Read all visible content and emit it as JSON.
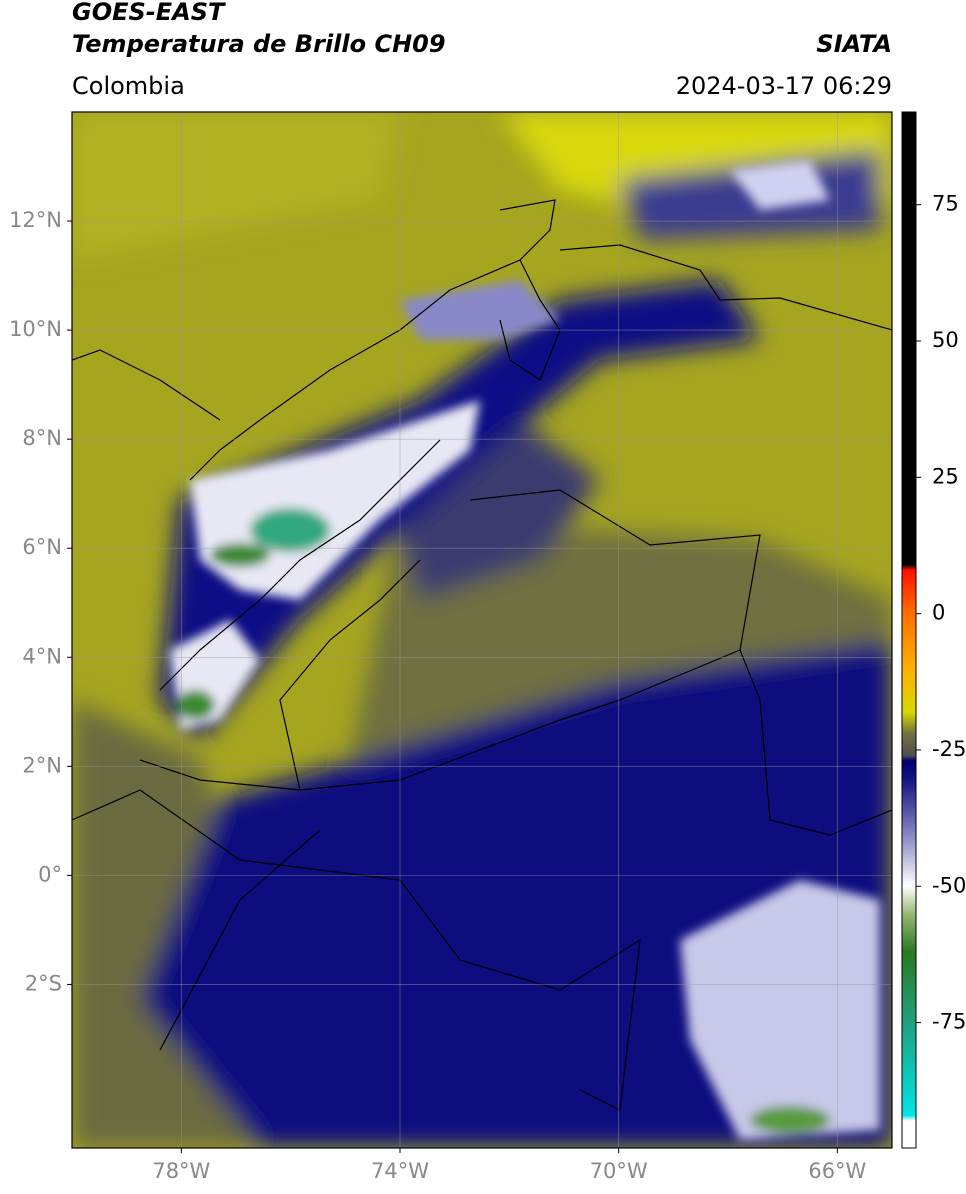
{
  "header": {
    "title": "GOES-EAST",
    "subtitle": "Temperatura de Brillo CH09",
    "source": "SIATA",
    "region": "Colombia",
    "datetime": "2024-03-17 06:29"
  },
  "map": {
    "xlim": [
      -80,
      -65
    ],
    "ylim": [
      -5,
      14
    ],
    "grid": true,
    "xticks": [
      {
        "value": -78,
        "label": "78°W"
      },
      {
        "value": -74,
        "label": "74°W"
      },
      {
        "value": -70,
        "label": "70°W"
      },
      {
        "value": -66,
        "label": "66°W"
      }
    ],
    "yticks": [
      {
        "value": 12,
        "label": "12°N"
      },
      {
        "value": 10,
        "label": "10°N"
      },
      {
        "value": 8,
        "label": "8°N"
      },
      {
        "value": 6,
        "label": "6°N"
      },
      {
        "value": 4,
        "label": "4°N"
      },
      {
        "value": 2,
        "label": "2°N"
      },
      {
        "value": 0,
        "label": "0°"
      },
      {
        "value": -2,
        "label": "2°S"
      }
    ]
  },
  "colorbar": {
    "lim": [
      -98,
      92
    ],
    "ticks": [
      -75,
      -50,
      -25,
      0,
      25,
      50,
      75
    ],
    "stops": [
      {
        "value": -98,
        "color": "#ffffff"
      },
      {
        "value": -93,
        "color": "#ffffff"
      },
      {
        "value": -92,
        "color": "#00e5e5"
      },
      {
        "value": -75,
        "color": "#20a080"
      },
      {
        "value": -62,
        "color": "#2a7a20"
      },
      {
        "value": -55,
        "color": "#98b878"
      },
      {
        "value": -50,
        "color": "#ffffff"
      },
      {
        "value": -40,
        "color": "#8080c0"
      },
      {
        "value": -30,
        "color": "#101080"
      },
      {
        "value": -27,
        "color": "#000070"
      },
      {
        "value": -26,
        "color": "#505050"
      },
      {
        "value": -22,
        "color": "#707040"
      },
      {
        "value": -18,
        "color": "#d8d800"
      },
      {
        "value": -10,
        "color": "#ffb000"
      },
      {
        "value": 0,
        "color": "#ff7000"
      },
      {
        "value": 8,
        "color": "#ff1000"
      },
      {
        "value": 9,
        "color": "#000000"
      },
      {
        "value": 92,
        "color": "#000000"
      }
    ]
  }
}
